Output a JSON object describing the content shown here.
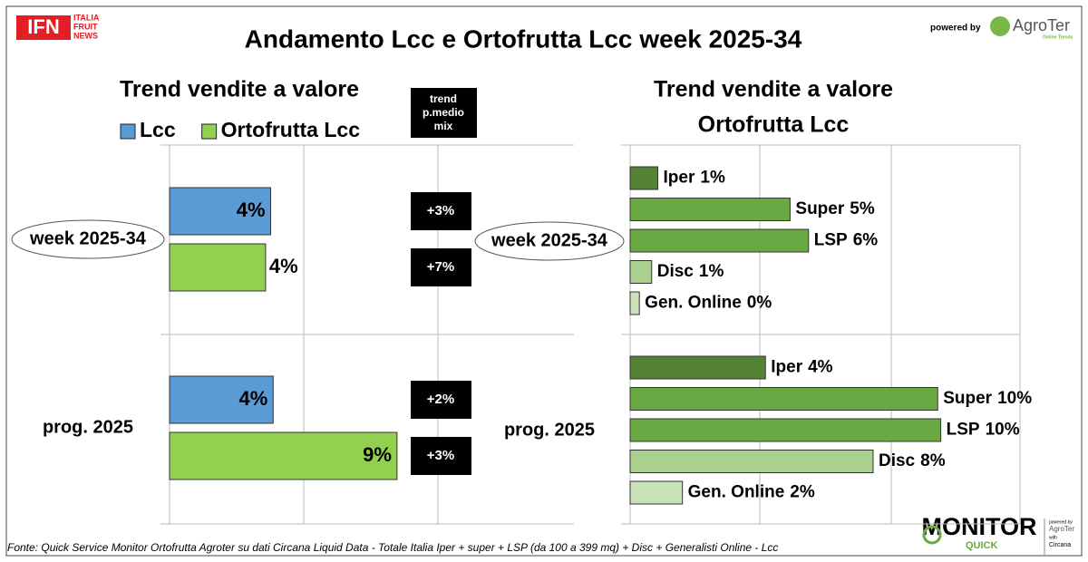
{
  "header": {
    "logo_ifn": "IFN",
    "logo_ifn_sub": [
      "ITALIA",
      "FRUIT",
      "NEWS"
    ],
    "title": "Andamento Lcc e Ortofrutta Lcc week 2025-34",
    "powered_by": "powered by",
    "agroter": "AgroTer",
    "agroter_sub": "Online Trends"
  },
  "chart_data": [
    {
      "type": "bar",
      "orientation": "horizontal",
      "title": "Trend vendite a valore",
      "categories": [
        "week 2025-34",
        "prog. 2025"
      ],
      "xlim": [
        0,
        16
      ],
      "legend": true,
      "trend_header": [
        "trend",
        "p.medio",
        "mix"
      ],
      "series": [
        {
          "name": "Lcc",
          "color": "#5b9bd5",
          "values": [
            4.0,
            4.1
          ],
          "value_labels": [
            "4%",
            "4%"
          ],
          "trend": [
            3,
            2
          ],
          "trend_labels": [
            "+3%",
            "+2%"
          ]
        },
        {
          "name": "Ortofrutta Lcc",
          "color": "#92d050",
          "values": [
            3.8,
            9.0
          ],
          "value_labels": [
            "4%",
            "9%"
          ],
          "trend": [
            7,
            3
          ],
          "trend_labels": [
            "+7%",
            "+3%"
          ]
        }
      ]
    },
    {
      "type": "bar",
      "orientation": "horizontal",
      "title": "Trend vendite a valore",
      "subtitle": "Ortofrutta Lcc",
      "categories": [
        "week 2025-34",
        "prog. 2025"
      ],
      "xlim": [
        0,
        13
      ],
      "legend": false,
      "series": [
        {
          "name": "Iper",
          "color": "#548235",
          "values": [
            0.9,
            4.4
          ],
          "value_labels": [
            "1%",
            "4%"
          ]
        },
        {
          "name": "Super",
          "color": "#6aa843",
          "values": [
            5.2,
            10.0
          ],
          "value_labels": [
            "5%",
            "10%"
          ]
        },
        {
          "name": "LSP",
          "color": "#6aa843",
          "values": [
            5.8,
            10.1
          ],
          "value_labels": [
            "6%",
            "10%"
          ]
        },
        {
          "name": "Disc",
          "color": "#a9d08e",
          "values": [
            0.7,
            7.9
          ],
          "value_labels": [
            "1%",
            "8%"
          ]
        },
        {
          "name": "Gen. Online",
          "color": "#c9e2b8",
          "values": [
            0.3,
            1.7
          ],
          "value_labels": [
            "0%",
            "2%"
          ]
        }
      ]
    }
  ],
  "footer": {
    "source": "Fonte: Quick Service Monitor Ortofrutta Agroter su dati Circana Liquid Data - Totale Italia Iper + super + LSP (da 100 a 399 mq) + Disc + Generalisti Online - Lcc",
    "monitor": "MONITOR",
    "quick": "QUICK",
    "powered_by": "powered by",
    "agroter": "AgroTer",
    "with": "with",
    "circana": "Circana"
  }
}
